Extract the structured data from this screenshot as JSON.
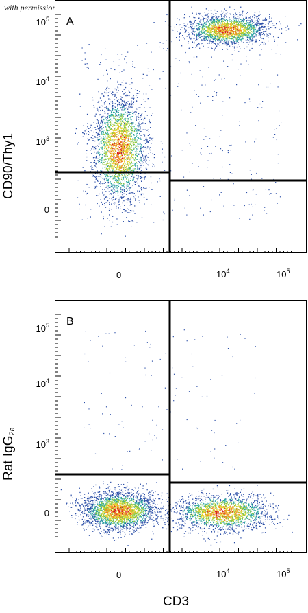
{
  "watermark": "with permission from R&D Systems",
  "chart_data": [
    {
      "type": "scatter",
      "panel_label": "A",
      "xlabel": "CD3",
      "ylabel": "CD90/Thy1",
      "x_scale": "biexponential",
      "y_scale": "biexponential",
      "x_ticks": [
        "0",
        "10^4",
        "10^5"
      ],
      "y_ticks": [
        "0",
        "10^3",
        "10^4",
        "10^5"
      ],
      "quadrant_gates": {
        "x": 2000,
        "y_left": 350,
        "y_right": 250
      },
      "populations": [
        {
          "name": "",
          "x_center": 0,
          "y_center": 900,
          "count": 2600
        },
        {
          "name": "",
          "x_center": 9000,
          "y_center": 80000,
          "count": 2000
        }
      ]
    },
    {
      "type": "scatter",
      "panel_label": "B",
      "xlabel": "CD3",
      "ylabel": "Rat IgG2a",
      "x_scale": "biexponential",
      "y_scale": "biexponential",
      "x_ticks": [
        "0",
        "10^4",
        "10^5"
      ],
      "y_ticks": [
        "0",
        "10^3",
        "10^4",
        "10^5"
      ],
      "quadrant_gates": {
        "x": 2000,
        "y_left": 350,
        "y_right": 280
      },
      "populations": [
        {
          "name": "",
          "x_center": 0,
          "y_center": 0,
          "count": 2600
        },
        {
          "name": "",
          "x_center": 9000,
          "y_center": 0,
          "count": 1900
        }
      ]
    }
  ],
  "ui": {
    "panel_a_letter": "A",
    "panel_b_letter": "B",
    "ylabel_a": "CD90/Thy1",
    "ylabel_b_main": "Rat IgG",
    "ylabel_b_sub": "2a",
    "xlabel": "CD3",
    "tick_base": "10",
    "tick_zero": "0",
    "exp3": "3",
    "exp4": "4",
    "exp5": "5"
  }
}
